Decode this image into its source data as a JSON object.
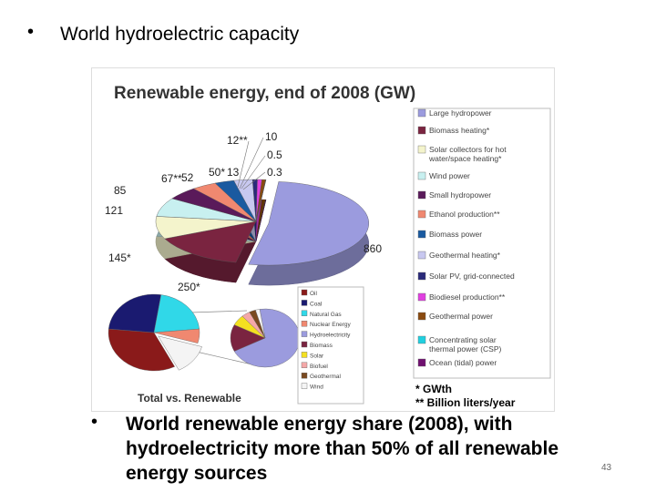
{
  "slide": {
    "bullet_top": "World hydroelectric capacity",
    "bullet_bottom": "World renewable energy share (2008), with hydroelectricity more than 50% of all renewable energy sources",
    "page_number": "43",
    "bullet_glyph": "•"
  },
  "chart_data": [
    {
      "type": "pie",
      "title": "Renewable energy, end of 2008 (GW)",
      "slices": [
        {
          "name": "Large hydropower",
          "value": 860,
          "label": "860",
          "color": "#9b9bde"
        },
        {
          "name": "Biomass heating*",
          "value": 250,
          "label": "250*",
          "color": "#7a2440"
        },
        {
          "name": "Solar collectors for hot water/space heating*",
          "value": 145,
          "label": "145*",
          "color": "#f4f4cc"
        },
        {
          "name": "Wind power",
          "value": 121,
          "label": "121",
          "color": "#c8f0f0"
        },
        {
          "name": "Small hydropower",
          "value": 85,
          "label": "85",
          "color": "#5a1a5a"
        },
        {
          "name": "Ethanol production**",
          "value": 67,
          "label": "67**",
          "color": "#f08870"
        },
        {
          "name": "Biomass power",
          "value": 52,
          "label": "52",
          "color": "#1a5aa0"
        },
        {
          "name": "Geothermal heating*",
          "value": 50,
          "label": "50*",
          "color": "#c8c8f0"
        },
        {
          "name": "Solar PV, grid-connected",
          "value": 13,
          "label": "13",
          "color": "#2a2a7a"
        },
        {
          "name": "Biodiesel production**",
          "value": 12,
          "label": "12**",
          "color": "#e040e0"
        },
        {
          "name": "Geothermal power",
          "value": 10,
          "label": "10",
          "color": "#8a4a10"
        },
        {
          "name": "Concentrating solar thermal power (CSP)",
          "value": 0.5,
          "label": "0.5",
          "color": "#20d0e0"
        },
        {
          "name": "Ocean (tidal) power",
          "value": 0.3,
          "label": "0.3",
          "color": "#701070"
        }
      ],
      "footnotes": [
        "* GWth",
        "** Billion liters/year"
      ]
    },
    {
      "type": "pie",
      "title": "Total vs. Renewable",
      "legend": [
        {
          "name": "Oil",
          "color": "#8a1a1a"
        },
        {
          "name": "Coal",
          "color": "#1a1a70"
        },
        {
          "name": "Natural Gas",
          "color": "#30d8e8"
        },
        {
          "name": "Nuclear Energy",
          "color": "#f08870"
        },
        {
          "name": "Hydroelectricity",
          "color": "#9b9bde"
        },
        {
          "name": "Biomass",
          "color": "#7a2440"
        },
        {
          "name": "Solar",
          "color": "#f4e020"
        },
        {
          "name": "Biofuel",
          "color": "#f4a8a8"
        },
        {
          "name": "Geothermal",
          "color": "#7a4a20"
        },
        {
          "name": "Wind",
          "color": "#f4f4f4"
        }
      ],
      "total_slices": [
        {
          "name": "Oil",
          "value": 34,
          "color": "#8a1a1a"
        },
        {
          "name": "Coal",
          "value": 26,
          "color": "#1a1a70"
        },
        {
          "name": "Natural Gas",
          "value": 21,
          "color": "#30d8e8"
        },
        {
          "name": "Nuclear Energy",
          "value": 6,
          "color": "#f08870"
        },
        {
          "name": "Renewable",
          "value": 13,
          "color": "#f4f4f4"
        }
      ],
      "renewable_slices": [
        {
          "name": "Hydroelectricity",
          "value": 70,
          "color": "#9b9bde"
        },
        {
          "name": "Biomass",
          "value": 15,
          "color": "#7a2440"
        },
        {
          "name": "Solar",
          "value": 6,
          "color": "#f4e020"
        },
        {
          "name": "Biofuel",
          "value": 4,
          "color": "#f4a8a8"
        },
        {
          "name": "Geothermal",
          "value": 3,
          "color": "#7a4a20"
        },
        {
          "name": "Wind",
          "value": 2,
          "color": "#f4f4f4"
        }
      ]
    }
  ]
}
